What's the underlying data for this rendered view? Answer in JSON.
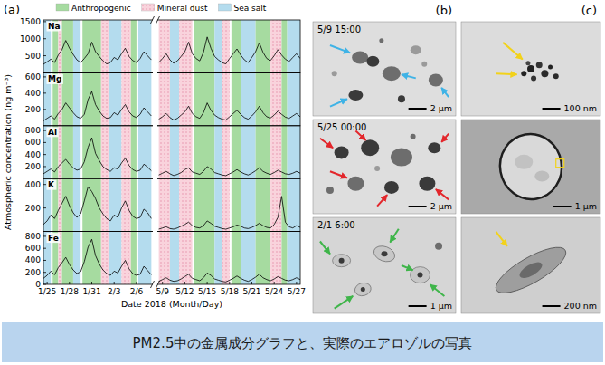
{
  "chart_data": {
    "type": "line",
    "x_label": "Date 2018 (Month/Day)",
    "y_label": "Atmospheric concentration (ng m⁻³)",
    "legend": "top",
    "grid": false,
    "categories": [
      null,
      "1/25",
      null,
      null,
      null,
      null,
      null,
      "1/28",
      null,
      null,
      null,
      null,
      null,
      "1/31",
      null,
      null,
      null,
      null,
      null,
      "2/3",
      null,
      null,
      null,
      null,
      null,
      "2/6",
      null,
      null,
      null,
      null,
      null,
      null,
      "5/9",
      null,
      null,
      null,
      null,
      null,
      "5/12",
      null,
      null,
      null,
      null,
      null,
      "5/15",
      null,
      null,
      null,
      null,
      null,
      "5/18",
      null,
      null,
      null,
      null,
      null,
      "5/21",
      null,
      null,
      null,
      null,
      null,
      "5/24",
      null,
      null,
      null,
      null,
      null,
      "5/27",
      null
    ],
    "series": [
      {
        "name": "Na",
        "color": "#000000",
        "ylim": [
          0,
          1550
        ],
        "yticks": [
          500,
          1000,
          1500
        ],
        "values": [
          250,
          320,
          400,
          300,
          520,
          680,
          950,
          720,
          540,
          380,
          300,
          420,
          560,
          900,
          620,
          480,
          350,
          260,
          300,
          450,
          380,
          560,
          720,
          480,
          360,
          300,
          420,
          620,
          500,
          380,
          null,
          300,
          420,
          560,
          380,
          280,
          350,
          480,
          620,
          900,
          560,
          420,
          350,
          600,
          1050,
          720,
          480,
          380,
          300,
          260,
          420,
          560,
          700,
          520,
          380,
          300,
          450,
          620,
          880,
          600,
          420,
          360,
          500,
          680,
          520,
          400,
          330,
          450,
          560,
          420
        ]
      },
      {
        "name": "Mg",
        "color": "#000000",
        "ylim": [
          0,
          650
        ],
        "yticks": [
          200,
          400,
          600
        ],
        "values": [
          60,
          90,
          120,
          80,
          150,
          200,
          280,
          220,
          160,
          110,
          90,
          140,
          320,
          420,
          260,
          180,
          120,
          90,
          100,
          160,
          130,
          200,
          260,
          170,
          120,
          100,
          140,
          220,
          170,
          120,
          null,
          80,
          110,
          150,
          100,
          70,
          90,
          130,
          170,
          240,
          150,
          110,
          90,
          160,
          280,
          190,
          130,
          100,
          80,
          70,
          110,
          150,
          190,
          140,
          100,
          80,
          120,
          170,
          240,
          160,
          110,
          95,
          130,
          180,
          140,
          105,
          90,
          120,
          150,
          110
        ]
      },
      {
        "name": "Al",
        "color": "#000000",
        "ylim": [
          0,
          880
        ],
        "yticks": [
          200,
          400,
          600,
          800
        ],
        "values": [
          80,
          120,
          160,
          110,
          200,
          260,
          320,
          240,
          180,
          140,
          160,
          280,
          520,
          680,
          420,
          300,
          200,
          150,
          120,
          180,
          160,
          260,
          340,
          220,
          150,
          120,
          140,
          240,
          190,
          130,
          null,
          60,
          90,
          120,
          80,
          50,
          70,
          100,
          150,
          180,
          110,
          90,
          70,
          120,
          200,
          160,
          100,
          80,
          60,
          50,
          80,
          110,
          150,
          110,
          80,
          60,
          90,
          130,
          180,
          120,
          90,
          70,
          100,
          140,
          110,
          80,
          70,
          90,
          120,
          90
        ]
      },
      {
        "name": "K",
        "color": "#000000",
        "ylim": [
          0,
          450
        ],
        "yticks": [
          200,
          400
        ],
        "values": [
          60,
          90,
          140,
          110,
          180,
          240,
          300,
          220,
          160,
          120,
          150,
          260,
          380,
          340,
          280,
          200,
          150,
          110,
          90,
          140,
          120,
          200,
          260,
          180,
          130,
          110,
          120,
          190,
          160,
          110,
          null,
          20,
          30,
          40,
          25,
          20,
          30,
          45,
          60,
          80,
          50,
          35,
          30,
          50,
          90,
          70,
          45,
          35,
          25,
          20,
          30,
          40,
          55,
          45,
          30,
          25,
          35,
          50,
          70,
          50,
          35,
          30,
          60,
          120,
          300,
          80,
          40,
          30,
          50,
          35
        ]
      },
      {
        "name": "Fe",
        "color": "#000000",
        "ylim": [
          0,
          880
        ],
        "yticks": [
          0,
          200,
          400,
          600,
          800
        ],
        "values": [
          100,
          150,
          220,
          160,
          280,
          360,
          450,
          330,
          240,
          180,
          210,
          380,
          620,
          750,
          480,
          340,
          240,
          180,
          150,
          220,
          190,
          300,
          400,
          260,
          180,
          150,
          170,
          300,
          230,
          160,
          null,
          50,
          80,
          110,
          70,
          50,
          60,
          90,
          130,
          170,
          100,
          80,
          60,
          110,
          190,
          150,
          90,
          70,
          50,
          40,
          70,
          100,
          140,
          100,
          70,
          50,
          80,
          120,
          170,
          110,
          80,
          60,
          90,
          130,
          100,
          70,
          60,
          80,
          110,
          80
        ]
      }
    ],
    "bands": {
      "legend": [
        {
          "name": "Anthropogenic",
          "color": "#a6dba0"
        },
        {
          "name": "Mineral dust",
          "color": "#f9d3dc"
        },
        {
          "name": "Sea salt",
          "color": "#b4dcee"
        }
      ],
      "spans": [
        {
          "kind": 2,
          "start": 0,
          "end": 2
        },
        {
          "kind": 0,
          "start": 2.5,
          "end": 4
        },
        {
          "kind": 1,
          "start": 4,
          "end": 5
        },
        {
          "kind": 0,
          "start": 5,
          "end": 8
        },
        {
          "kind": 2,
          "start": 8,
          "end": 10
        },
        {
          "kind": 0,
          "start": 10.5,
          "end": 15.5
        },
        {
          "kind": 1,
          "start": 15.5,
          "end": 17.5
        },
        {
          "kind": 2,
          "start": 17.5,
          "end": 21
        },
        {
          "kind": 1,
          "start": 21,
          "end": 23.5
        },
        {
          "kind": 0,
          "start": 23.5,
          "end": 25
        },
        {
          "kind": 2,
          "start": 25.5,
          "end": 29
        },
        {
          "kind": 1,
          "start": 31,
          "end": 34
        },
        {
          "kind": 2,
          "start": 34,
          "end": 36.5
        },
        {
          "kind": 1,
          "start": 36.5,
          "end": 40
        },
        {
          "kind": 0,
          "start": 40.5,
          "end": 46
        },
        {
          "kind": 2,
          "start": 46,
          "end": 48
        },
        {
          "kind": 1,
          "start": 48,
          "end": 50
        },
        {
          "kind": 0,
          "start": 50.5,
          "end": 53
        },
        {
          "kind": 2,
          "start": 53,
          "end": 57
        },
        {
          "kind": 0,
          "start": 57,
          "end": 61
        },
        {
          "kind": 1,
          "start": 61,
          "end": 64
        },
        {
          "kind": 0,
          "start": 64,
          "end": 65.5
        },
        {
          "kind": 2,
          "start": 65.5,
          "end": 69
        }
      ]
    }
  },
  "figure": {
    "panel_labels": [
      "(a)",
      "(b)",
      "(c)"
    ],
    "micrographs_b": [
      {
        "time": "5/9 15:00",
        "scale": "2 μm"
      },
      {
        "time": "5/25 00:00",
        "scale": "2 μm"
      },
      {
        "time": "2/1 6:00",
        "scale": "1 μm"
      }
    ],
    "micrographs_c": [
      {
        "scale": "100 nm"
      },
      {
        "scale": "1 μm"
      },
      {
        "scale": "200 nm"
      }
    ],
    "caption": "PM2.5中の金属成分グラフと、実際のエアロゾルの写真"
  }
}
